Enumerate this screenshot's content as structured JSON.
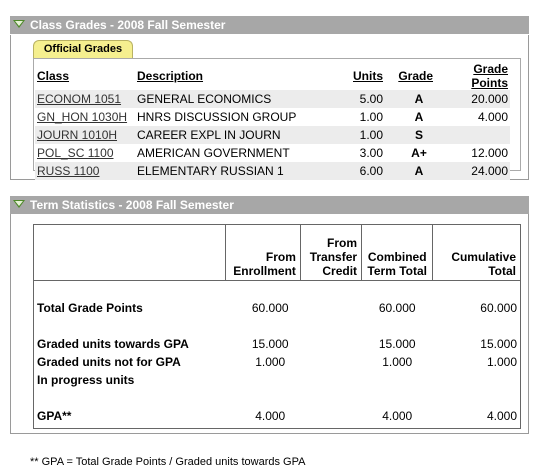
{
  "class_grades": {
    "title": "Class Grades - 2008 Fall Semester",
    "tab_label": "Official Grades",
    "headers": [
      "Class",
      "Description",
      "Units",
      "Grade",
      "Grade Points"
    ],
    "rows": [
      {
        "class": "ECONOM 1051",
        "description": "GENERAL ECONOMICS",
        "units": "5.00",
        "grade": "A",
        "points": "20.000"
      },
      {
        "class": "GN_HON 1030H",
        "description": "HNRS DISCUSSION GROUP",
        "units": "1.00",
        "grade": "A",
        "points": "4.000"
      },
      {
        "class": "JOURN 1010H",
        "description": "CAREER EXPL IN JOURN",
        "units": "1.00",
        "grade": "S",
        "points": ""
      },
      {
        "class": "POL_SC 1100",
        "description": "AMERICAN GOVERNMENT",
        "units": "3.00",
        "grade": "A+",
        "points": "12.000"
      },
      {
        "class": "RUSS 1100",
        "description": "ELEMENTARY RUSSIAN 1",
        "units": "6.00",
        "grade": "A",
        "points": "24.000"
      }
    ]
  },
  "term_statistics": {
    "title": "Term Statistics - 2008 Fall Semester",
    "col_headers": {
      "from_enrollment": "From Enrollment",
      "from_transfer": "From Transfer Credit",
      "combined": "Combined Term Total",
      "cumulative": "Cumulative Total"
    },
    "rows": [
      {
        "label": "Total Grade Points",
        "enrollment": "60.000",
        "transfer": "",
        "combined": "60.000",
        "cumulative": "60.000"
      },
      {
        "label": "Graded units towards GPA",
        "enrollment": "15.000",
        "transfer": "",
        "combined": "15.000",
        "cumulative": "15.000"
      },
      {
        "label": "Graded units not for GPA",
        "enrollment": "1.000",
        "transfer": "",
        "combined": "1.000",
        "cumulative": "1.000"
      },
      {
        "label": "In progress units",
        "enrollment": "",
        "transfer": "",
        "combined": "",
        "cumulative": ""
      },
      {
        "label": "GPA**",
        "enrollment": "4.000",
        "transfer": "",
        "combined": "4.000",
        "cumulative": "4.000"
      }
    ]
  },
  "footnote": "** GPA = Total Grade Points / Graded units towards GPA"
}
